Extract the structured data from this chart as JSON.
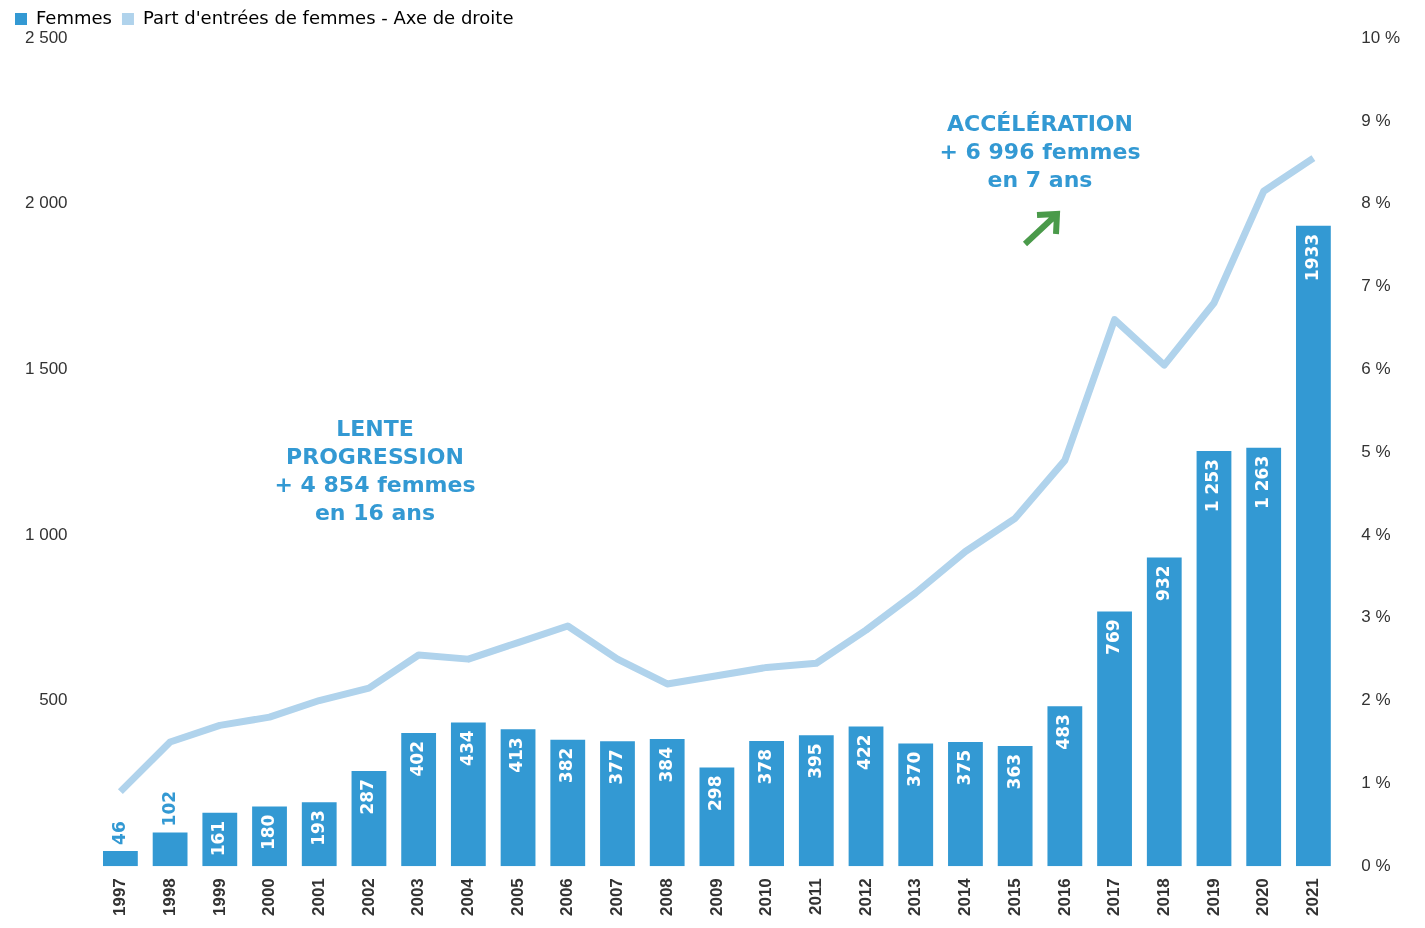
{
  "chart_data": {
    "type": "bar",
    "categories": [
      "1997",
      "1998",
      "1999",
      "2000",
      "2001",
      "2002",
      "2003",
      "2004",
      "2005",
      "2006",
      "2007",
      "2008",
      "2009",
      "2010",
      "2011",
      "2012",
      "2013",
      "2014",
      "2015",
      "2016",
      "2017",
      "2018",
      "2019",
      "2020",
      "2021"
    ],
    "series": [
      {
        "name": "Femmes",
        "color": "#3399d3",
        "values": [
          46,
          102,
          161,
          180,
          193,
          287,
          402,
          434,
          413,
          382,
          377,
          384,
          298,
          378,
          395,
          422,
          370,
          375,
          363,
          483,
          769,
          932,
          1253,
          1263,
          1933
        ],
        "value_labels": [
          "46",
          "102",
          "161",
          "180",
          "193",
          "287",
          "402",
          "434",
          "413",
          "382",
          "377",
          "384",
          "298",
          "378",
          "395",
          "422",
          "370",
          "375",
          "363",
          "483",
          "769",
          "932",
          "1 253",
          "1 263",
          "1933"
        ]
      },
      {
        "name": "Part d'entrées de femmes - Axe de droite",
        "type": "line",
        "axis": "y2",
        "color": "#b0d3ec",
        "values": [
          0.9,
          1.5,
          1.7,
          1.8,
          2.0,
          2.15,
          2.55,
          2.5,
          2.7,
          2.9,
          2.5,
          2.2,
          2.3,
          2.4,
          2.45,
          2.85,
          3.3,
          3.8,
          4.2,
          4.9,
          6.6,
          6.05,
          6.8,
          8.15,
          8.55
        ]
      }
    ],
    "ylim": [
      0,
      2500
    ],
    "yticks": [
      {
        "value": 500,
        "label": "500"
      },
      {
        "value": 1000,
        "label": "1 000"
      },
      {
        "value": 1500,
        "label": "1 500"
      },
      {
        "value": 2000,
        "label": "2 000"
      },
      {
        "value": 2500,
        "label": "2 500"
      }
    ],
    "y2lim": [
      0,
      10
    ],
    "y2ticks": [
      {
        "value": 0,
        "label": "0 %"
      },
      {
        "value": 1,
        "label": "1 %"
      },
      {
        "value": 2,
        "label": "2 %"
      },
      {
        "value": 3,
        "label": "3 %"
      },
      {
        "value": 4,
        "label": "4 %"
      },
      {
        "value": 5,
        "label": "5 %"
      },
      {
        "value": 6,
        "label": "6 %"
      },
      {
        "value": 7,
        "label": "7 %"
      },
      {
        "value": 8,
        "label": "8 %"
      },
      {
        "value": 9,
        "label": "9 %"
      },
      {
        "value": 10,
        "label": "10 %"
      }
    ],
    "annotations": [
      "LENTE\nPROGRESSION\n+ 4 854 femmes\nen 16 ans",
      "ACCÉLÉRATION\n+ 6 996 femmes\nen 7 ans"
    ],
    "grid": false,
    "legend": "top left",
    "marker": "none",
    "line_style": "solid"
  }
}
